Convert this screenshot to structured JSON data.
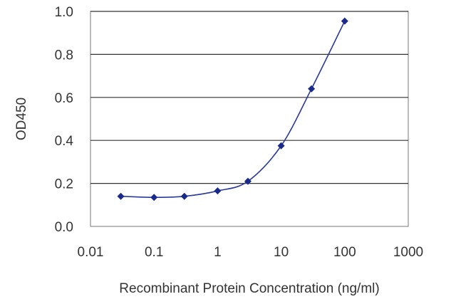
{
  "chart_data": {
    "type": "scatter",
    "title": "",
    "xlabel": "Recombinant Protein Concentration (ng/ml)",
    "ylabel": "OD450",
    "x_scale": "log",
    "xlim": [
      0.01,
      1000
    ],
    "ylim": [
      0.0,
      1.0
    ],
    "x_ticks": [
      "0.01",
      "0.1",
      "1",
      "10",
      "100",
      "1000"
    ],
    "y_ticks": [
      "0.0",
      "0.2",
      "0.4",
      "0.6",
      "0.8",
      "1.0"
    ],
    "grid": "horizontal",
    "legend": "none",
    "colors": {
      "series": "#1a2a8a",
      "grid": "#333333"
    },
    "series": [
      {
        "x": [
          0.03,
          0.1,
          0.3,
          1,
          3,
          10,
          30,
          100
        ],
        "y": [
          0.14,
          0.135,
          0.14,
          0.165,
          0.21,
          0.375,
          0.64,
          0.955
        ]
      }
    ]
  }
}
